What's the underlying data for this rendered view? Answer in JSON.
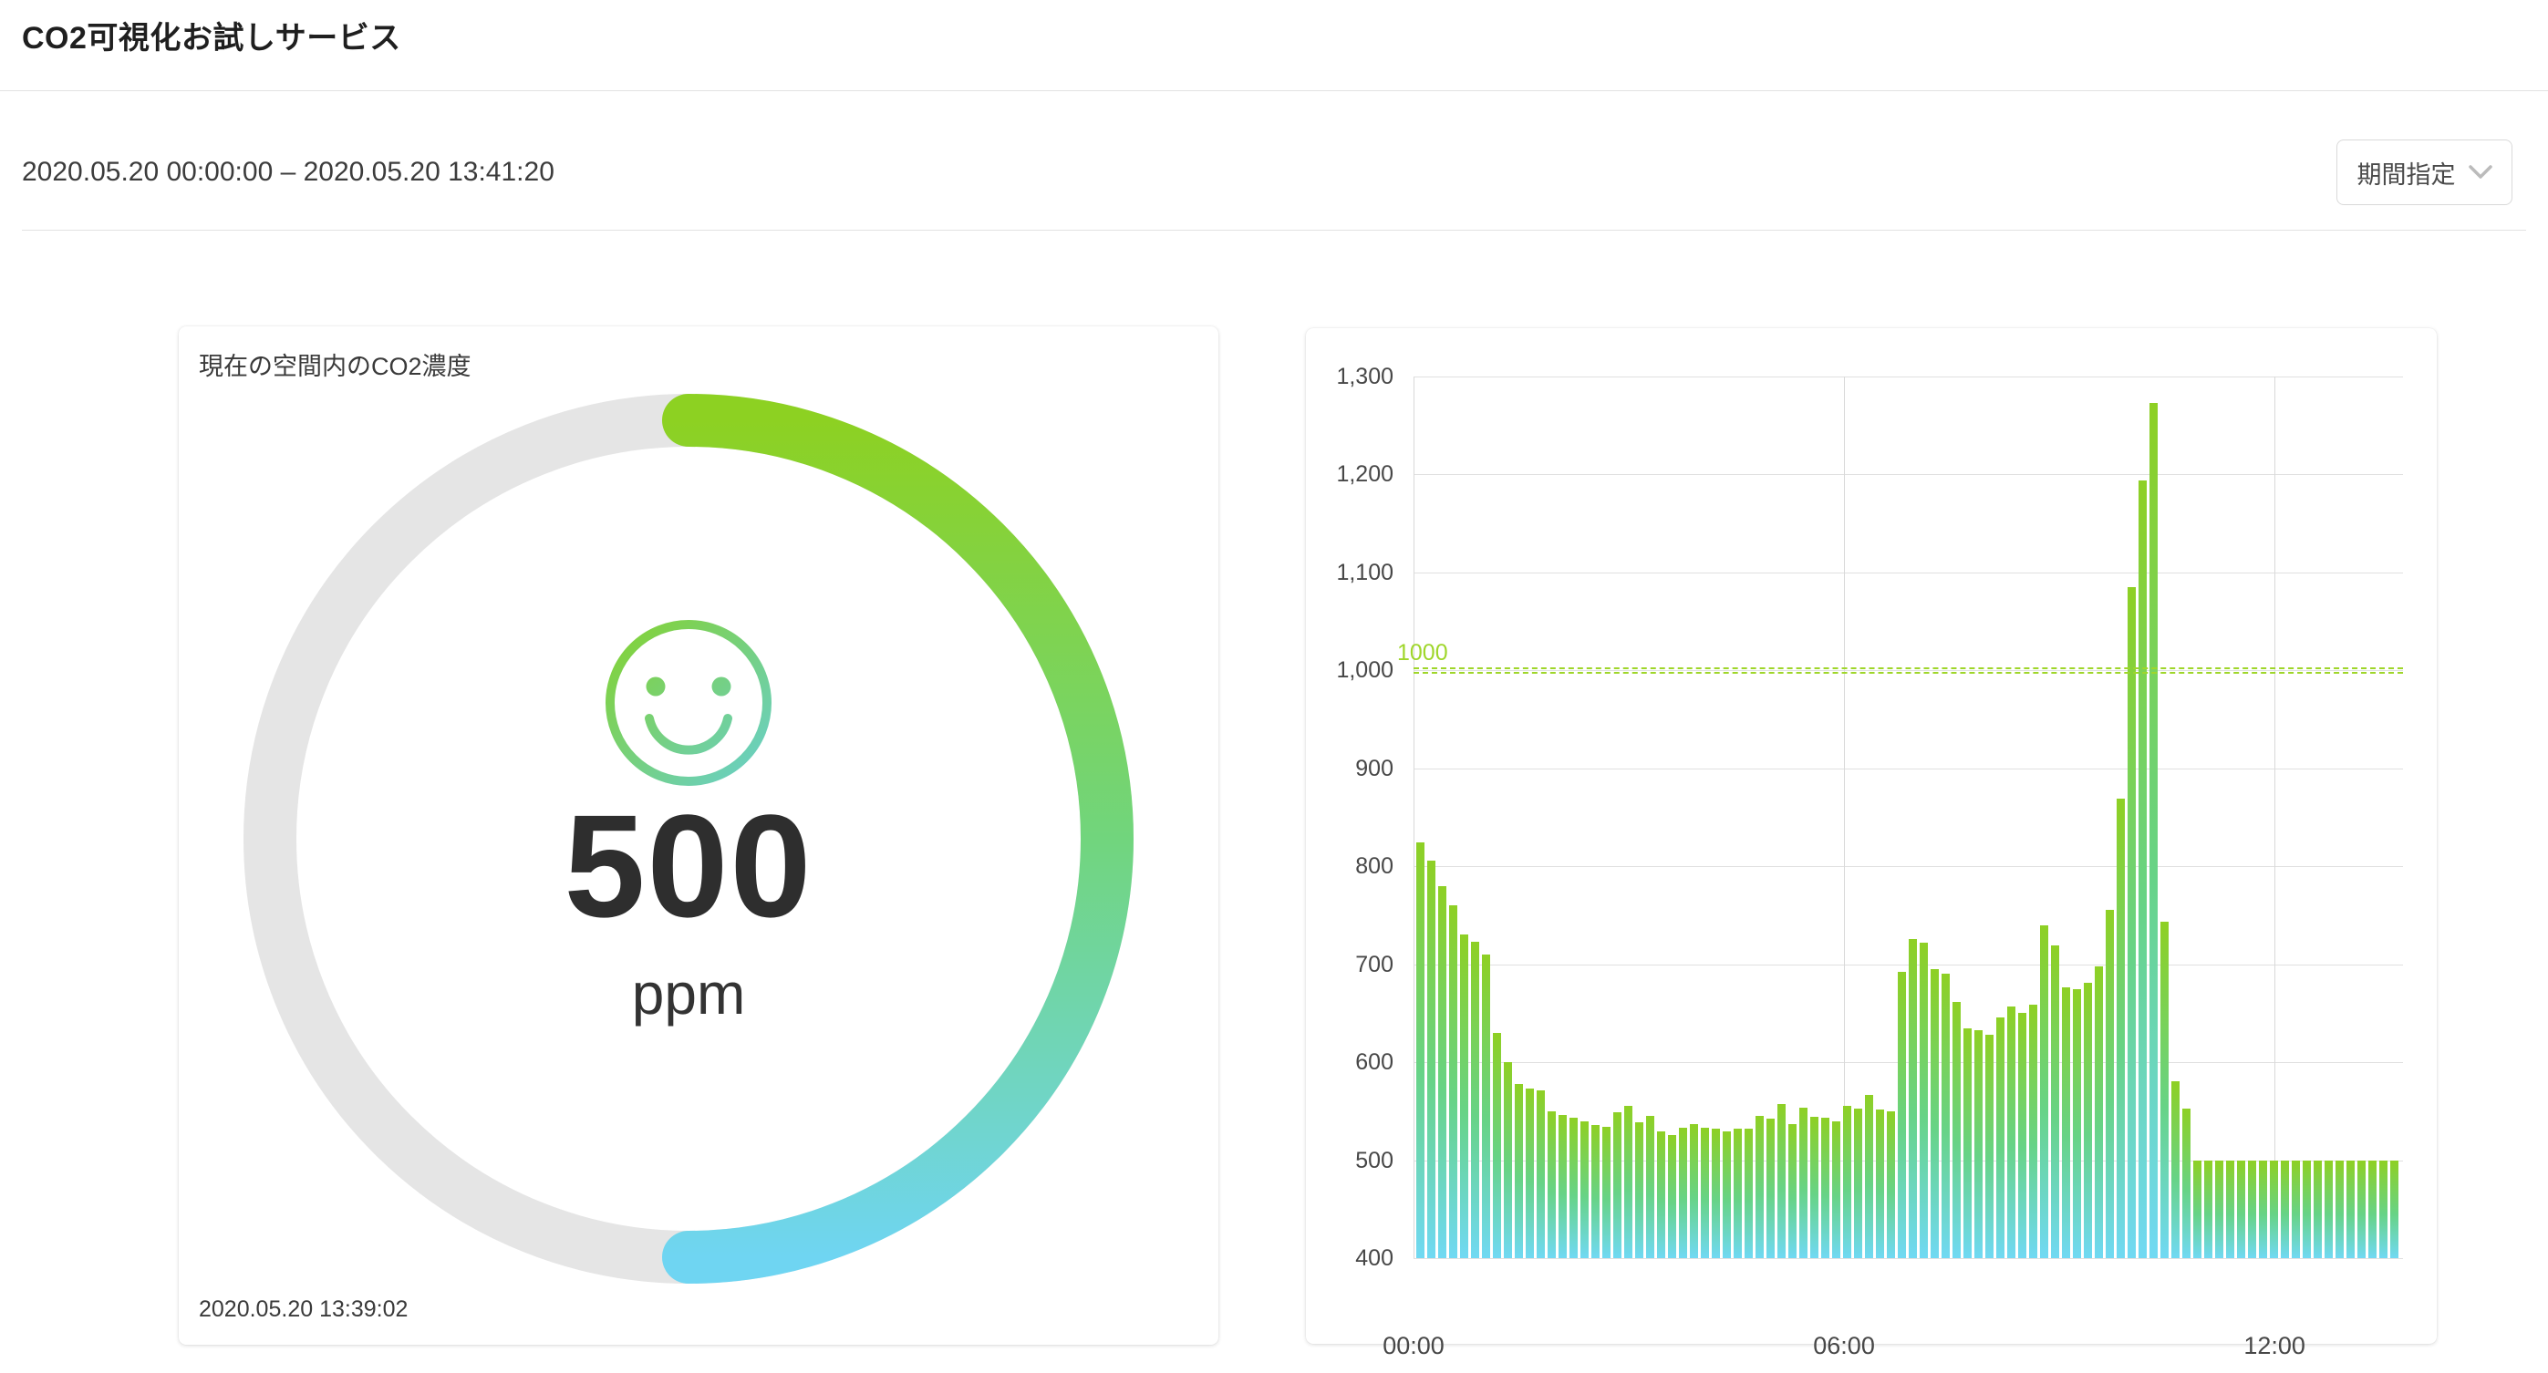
{
  "header": {
    "title": "CO2可視化お試しサービス"
  },
  "toolbar": {
    "date_range": "2020.05.20 00:00:00 – 2020.05.20 13:41:20",
    "period_button_label": "期間指定",
    "chevron_icon": "chevron-down-icon",
    "chevron_color": "#bbbbbb"
  },
  "gauge_card": {
    "title": "現在の空間内のCO2濃度",
    "value": "500",
    "unit": "ppm",
    "timestamp": "2020.05.20 13:39:02",
    "fraction": 0.5,
    "mood_icon": "smiley-face-icon",
    "colors": {
      "track": "#e5e5e5",
      "arc_top": "#8dd122",
      "arc_mid": "#71d57d",
      "arc_bottom": "#6fd5f2",
      "face_start": "#84d22f",
      "face_end": "#68cfcd"
    }
  },
  "chart_data": {
    "type": "bar",
    "title": "",
    "xlabel": "",
    "ylabel": "",
    "ylim": [
      400,
      1300
    ],
    "grid": true,
    "y_ticks": [
      {
        "v": 1300,
        "label": "1,300"
      },
      {
        "v": 1200,
        "label": "1,200"
      },
      {
        "v": 1100,
        "label": "1,100"
      },
      {
        "v": 1000,
        "label": "1,000"
      },
      {
        "v": 900,
        "label": "900"
      },
      {
        "v": 800,
        "label": "800"
      },
      {
        "v": 700,
        "label": "700"
      },
      {
        "v": 600,
        "label": "600"
      },
      {
        "v": 500,
        "label": "500"
      },
      {
        "v": 400,
        "label": "400"
      }
    ],
    "x_ticks": [
      {
        "minutes": 0,
        "label": "00:00"
      },
      {
        "minutes": 360,
        "label": "06:00"
      },
      {
        "minutes": 720,
        "label": "12:00"
      }
    ],
    "threshold": {
      "value": 1000,
      "label": "1000",
      "color": "#9fd62a"
    },
    "bar_gradient": [
      "#8ed024",
      "#67d386",
      "#70d9f3"
    ],
    "values": [
      824,
      806,
      780,
      760,
      730,
      723,
      710,
      630,
      600,
      578,
      573,
      571,
      550,
      546,
      543,
      540,
      536,
      534,
      549,
      555,
      539,
      545,
      529,
      526,
      533,
      537,
      533,
      532,
      529,
      532,
      532,
      545,
      542,
      557,
      537,
      554,
      544,
      543,
      540,
      555,
      553,
      567,
      552,
      550,
      692,
      726,
      722,
      695,
      690,
      662,
      635,
      633,
      628,
      646,
      657,
      650,
      659,
      740,
      719,
      676,
      675,
      681,
      698,
      756,
      869,
      1085,
      1194,
      1273,
      743,
      581,
      553,
      500,
      500,
      500,
      500,
      500,
      500,
      500,
      500,
      500,
      500,
      500,
      500,
      500,
      500,
      500,
      500,
      500,
      500,
      500
    ]
  }
}
